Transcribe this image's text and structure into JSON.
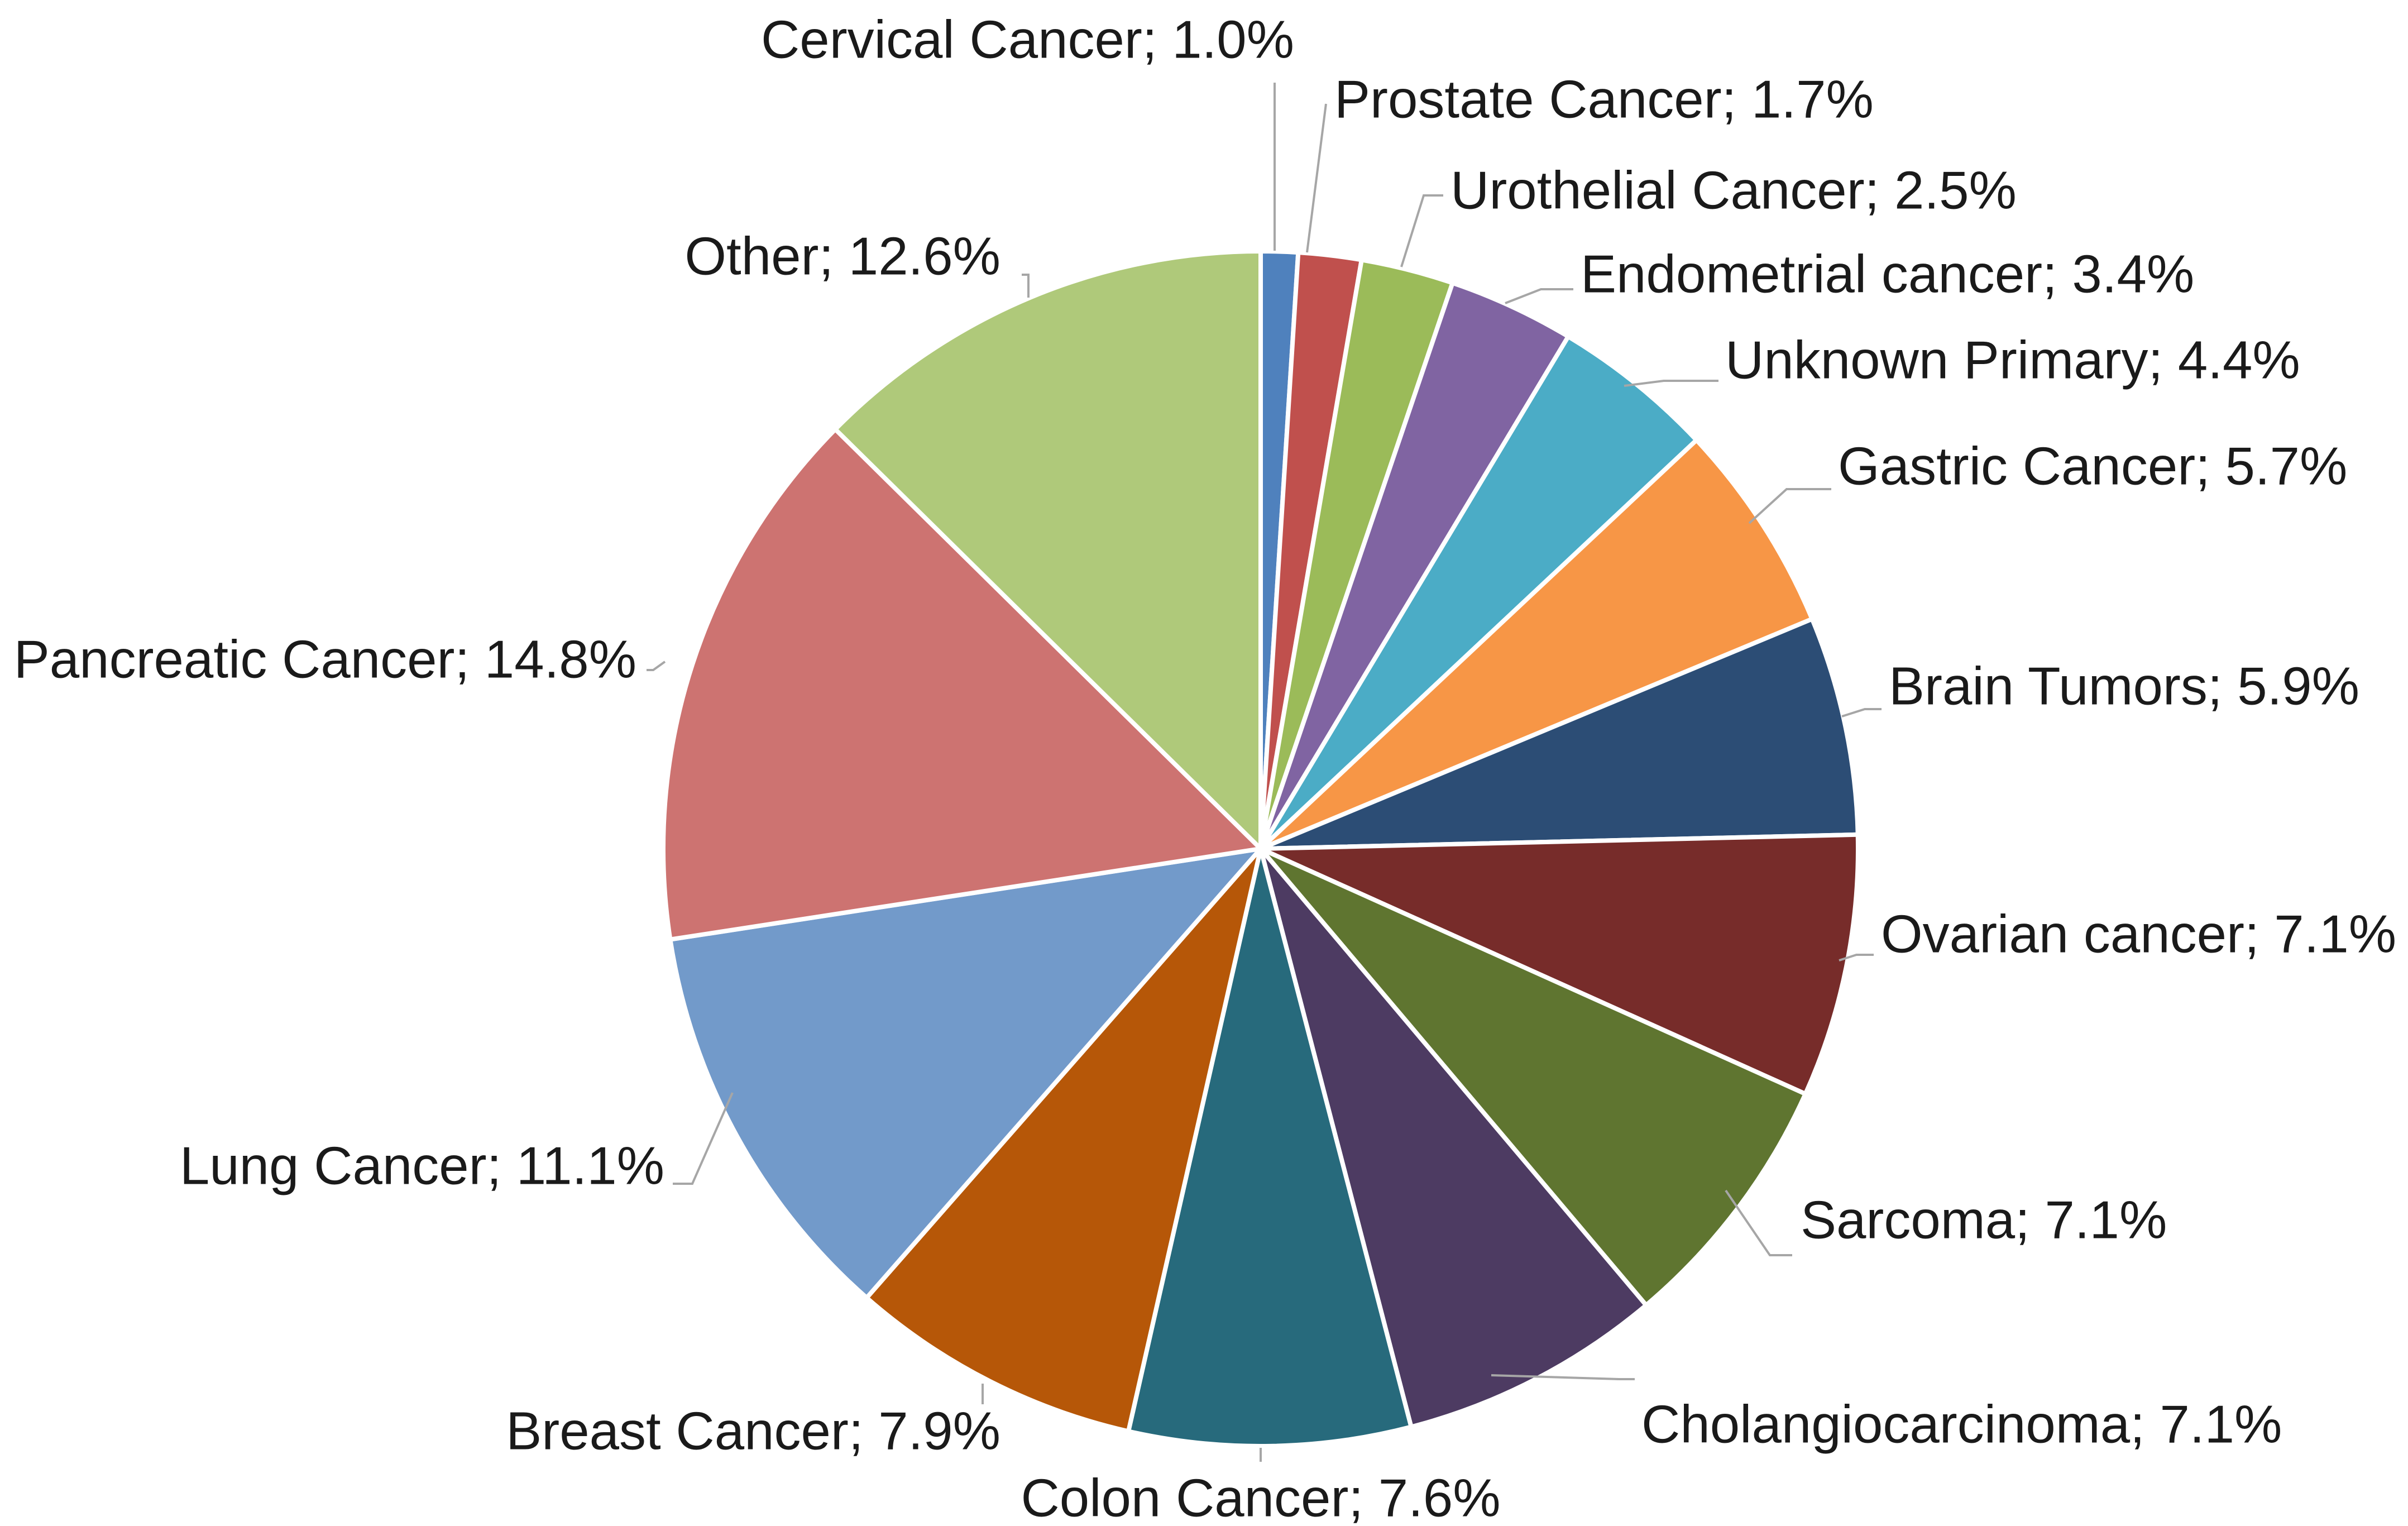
{
  "chart_data": {
    "type": "pie",
    "title": "",
    "start": "12 o'clock",
    "direction": "clockwise",
    "slices": [
      {
        "label": "Cervical Cancer",
        "value": 1.0,
        "display": "Cervical Cancer; 1.0%",
        "color": "#4f81bd"
      },
      {
        "label": "Prostate Cancer",
        "value": 1.7,
        "display": "Prostate Cancer; 1.7%",
        "color": "#c0504d"
      },
      {
        "label": "Urothelial Cancer",
        "value": 2.5,
        "display": "Urothelial Cancer; 2.5%",
        "color": "#9bbb59"
      },
      {
        "label": "Endometrial cancer",
        "value": 3.4,
        "display": "Endometrial cancer; 3.4%",
        "color": "#8064a2"
      },
      {
        "label": "Unknown Primary",
        "value": 4.4,
        "display": "Unknown Primary; 4.4%",
        "color": "#4bacc6"
      },
      {
        "label": "Gastric Cancer",
        "value": 5.7,
        "display": "Gastric Cancer; 5.7%",
        "color": "#f79646"
      },
      {
        "label": "Brain Tumors",
        "value": 5.9,
        "display": "Brain Tumors; 5.9%",
        "color": "#2c4d75"
      },
      {
        "label": "Ovarian cancer",
        "value": 7.1,
        "display": "Ovarian cancer; 7.1%",
        "color": "#772c2a"
      },
      {
        "label": "Sarcoma",
        "value": 7.1,
        "display": "Sarcoma; 7.1%",
        "color": "#5f7530"
      },
      {
        "label": "Cholangiocarcinoma",
        "value": 7.1,
        "display": "Cholangiocarcinoma; 7.1%",
        "color": "#4d3b62"
      },
      {
        "label": "Colon Cancer",
        "value": 7.6,
        "display": "Colon Cancer; 7.6%",
        "color": "#276a7c"
      },
      {
        "label": "Breast Cancer",
        "value": 7.9,
        "display": "Breast Cancer; 7.9%",
        "color": "#b65708"
      },
      {
        "label": "Lung Cancer",
        "value": 11.1,
        "display": "Lung Cancer; 11.1%",
        "color": "#729aca"
      },
      {
        "label": "Pancreatic Cancer",
        "value": 14.8,
        "display": "Pancreatic Cancer; 14.8%",
        "color": "#cd7371"
      },
      {
        "label": "Other",
        "value": 12.6,
        "display": "Other; 12.6%",
        "color": "#afc97a"
      }
    ]
  }
}
